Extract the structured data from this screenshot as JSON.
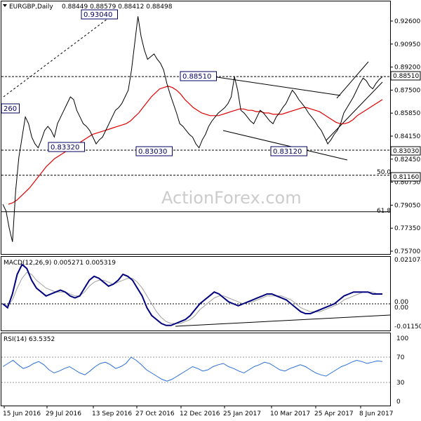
{
  "header": {
    "title": "EURGBP,Daily",
    "ohlc": "0.88449 0.88579 0.88412 0.88498"
  },
  "macd_header": "MACD(12,26,9) 0.005271 0.005319",
  "rsi_header": "RSI(14) 63.5352",
  "watermark": "ActionForex.com",
  "colors": {
    "price": "#000000",
    "ma": "#e00000",
    "macd": "#000080",
    "signal": "#a0a0a0",
    "rsi": "#2a6fd6",
    "label_border": "#000060"
  },
  "chart_data": [
    {
      "type": "line",
      "panel": "price",
      "ylim": [
        0.755,
        0.938
      ],
      "yticks": [
        "0.92600",
        "0.90950",
        "0.89200",
        "0.87500",
        "0.85850",
        "0.84150",
        "0.82450",
        "0.80750",
        "0.79050",
        "0.77350",
        "0.75700"
      ],
      "xticks": [
        "15 Jun 2016",
        "29 Jul 2016",
        "13 Sep 2016",
        "27 Oct 2016",
        "12 Dec 2016",
        "25 Jan 2017",
        "10 Mar 2017",
        "25 Apr 2017",
        "8 Jun 2017"
      ],
      "current_price": "0.88510",
      "horizontal_levels": [
        {
          "value": 0.8851,
          "style": "dashed"
        },
        {
          "value": 0.8303,
          "style": "dashed"
        },
        {
          "value": 0.8116,
          "style": "dashed"
        },
        {
          "value": 0.7844,
          "style": "solid"
        }
      ],
      "price_tags": [
        "0.88510",
        "0.83030",
        "0.81160"
      ],
      "fib_labels": [
        "50.0",
        "61.8"
      ],
      "annotations": [
        "0.93040",
        "0.88510",
        "0.83320",
        "0.83030",
        "0.83120",
        "260"
      ],
      "series": [
        {
          "values": [
            0.79,
            0.785,
            0.772,
            0.762,
            0.8,
            0.825,
            0.84,
            0.855,
            0.85,
            0.84,
            0.835,
            0.832,
            0.838,
            0.845,
            0.848,
            0.845,
            0.84,
            0.85,
            0.855,
            0.86,
            0.865,
            0.87,
            0.868,
            0.86,
            0.855,
            0.85,
            0.848,
            0.845,
            0.84,
            0.835,
            0.838,
            0.84,
            0.845,
            0.85,
            0.855,
            0.86,
            0.862,
            0.865,
            0.87,
            0.875,
            0.89,
            0.91,
            0.93,
            0.915,
            0.905,
            0.898,
            0.9,
            0.902,
            0.898,
            0.895,
            0.89,
            0.88,
            0.872,
            0.865,
            0.858,
            0.85,
            0.848,
            0.845,
            0.842,
            0.84,
            0.835,
            0.832,
            0.838,
            0.842,
            0.848,
            0.852,
            0.855,
            0.858,
            0.86,
            0.862,
            0.865,
            0.87,
            0.885,
            0.875,
            0.86,
            0.858,
            0.855,
            0.852,
            0.85,
            0.855,
            0.86,
            0.858,
            0.855,
            0.852,
            0.85,
            0.855,
            0.858,
            0.862,
            0.865,
            0.87,
            0.875,
            0.872,
            0.868,
            0.865,
            0.862,
            0.858,
            0.855,
            0.852,
            0.848,
            0.845,
            0.84,
            0.835,
            0.838,
            0.842,
            0.845,
            0.85,
            0.858,
            0.862,
            0.866,
            0.87,
            0.875,
            0.88,
            0.884,
            0.882,
            0.878,
            0.876,
            0.88,
            0.883,
            0.885
          ]
        },
        {
          "values": [
            0.79,
            0.791,
            0.793,
            0.796,
            0.799,
            0.802,
            0.806,
            0.81,
            0.814,
            0.818,
            0.821,
            0.824,
            0.826,
            0.828,
            0.83,
            0.832,
            0.834,
            0.836,
            0.838,
            0.84,
            0.842,
            0.843,
            0.844,
            0.845,
            0.846,
            0.847,
            0.848,
            0.849,
            0.85,
            0.852,
            0.855,
            0.858,
            0.862,
            0.866,
            0.87,
            0.873,
            0.876,
            0.877,
            0.878,
            0.877,
            0.875,
            0.872,
            0.868,
            0.865,
            0.862,
            0.86,
            0.858,
            0.857,
            0.856,
            0.856,
            0.856,
            0.857,
            0.858,
            0.859,
            0.86,
            0.861,
            0.861,
            0.86,
            0.86,
            0.859,
            0.859,
            0.858,
            0.858,
            0.857,
            0.857,
            0.857,
            0.858,
            0.859,
            0.86,
            0.861,
            0.862,
            0.862,
            0.861,
            0.86,
            0.859,
            0.857,
            0.855,
            0.853,
            0.851,
            0.85,
            0.85,
            0.851,
            0.853,
            0.856,
            0.858,
            0.86,
            0.862,
            0.864,
            0.866,
            0.868
          ]
        }
      ]
    },
    {
      "type": "line",
      "panel": "macd",
      "ylim": [
        -0.0125,
        0.0225
      ],
      "yticks": [
        "0.021074",
        "0.00",
        "0.00",
        "-0.011507"
      ],
      "series": [
        {
          "name": "MACD",
          "values": [
            0.0,
            -0.002,
            0.005,
            0.015,
            0.02,
            0.018,
            0.012,
            0.008,
            0.006,
            0.004,
            0.005,
            0.006,
            0.007,
            0.006,
            0.004,
            0.003,
            0.004,
            0.008,
            0.012,
            0.014,
            0.013,
            0.011,
            0.009,
            0.01,
            0.012,
            0.015,
            0.014,
            0.012,
            0.008,
            0.004,
            -0.002,
            -0.006,
            -0.008,
            -0.01,
            -0.011,
            -0.011,
            -0.01,
            -0.009,
            -0.008,
            -0.006,
            -0.003,
            0.0,
            0.002,
            0.004,
            0.006,
            0.005,
            0.003,
            0.001,
            0.0,
            -0.001,
            0.0,
            0.001,
            0.002,
            0.003,
            0.004,
            0.005,
            0.005,
            0.004,
            0.003,
            0.002,
            0.0,
            -0.002,
            -0.004,
            -0.005,
            -0.005,
            -0.004,
            -0.003,
            -0.002,
            -0.001,
            0.0,
            0.002,
            0.004,
            0.005,
            0.006,
            0.006,
            0.006,
            0.006,
            0.005,
            0.005,
            0.005
          ]
        },
        {
          "name": "Signal",
          "values": [
            0.0,
            -0.001,
            0.002,
            0.008,
            0.013,
            0.016,
            0.015,
            0.012,
            0.01,
            0.008,
            0.007,
            0.006,
            0.006,
            0.006,
            0.005,
            0.004,
            0.004,
            0.006,
            0.009,
            0.011,
            0.012,
            0.012,
            0.011,
            0.01,
            0.011,
            0.012,
            0.013,
            0.013,
            0.011,
            0.008,
            0.004,
            0.0,
            -0.004,
            -0.007,
            -0.009,
            -0.01,
            -0.01,
            -0.01,
            -0.009,
            -0.008,
            -0.006,
            -0.003,
            -0.001,
            0.001,
            0.003,
            0.004,
            0.004,
            0.003,
            0.002,
            0.001,
            0.0,
            0.001,
            0.001,
            0.002,
            0.003,
            0.004,
            0.004,
            0.004,
            0.004,
            0.003,
            0.002,
            0.0,
            -0.002,
            -0.003,
            -0.004,
            -0.004,
            -0.004,
            -0.003,
            -0.002,
            -0.001,
            0.0,
            0.002,
            0.003,
            0.004,
            0.005,
            0.006,
            0.006,
            0.006,
            0.005,
            0.005
          ]
        }
      ]
    },
    {
      "type": "line",
      "panel": "rsi",
      "ylim": [
        0,
        100
      ],
      "yticks": [
        "100",
        "70",
        "30",
        "0"
      ],
      "series": [
        {
          "name": "RSI(14)",
          "values": [
            55,
            60,
            65,
            58,
            52,
            55,
            60,
            63,
            58,
            50,
            45,
            48,
            52,
            55,
            50,
            45,
            42,
            48,
            55,
            60,
            62,
            58,
            52,
            55,
            60,
            70,
            65,
            58,
            50,
            45,
            40,
            35,
            32,
            35,
            40,
            45,
            50,
            55,
            52,
            48,
            50,
            55,
            58,
            60,
            55,
            52,
            48,
            45,
            50,
            55,
            58,
            62,
            60,
            55,
            50,
            48,
            52,
            55,
            58,
            55,
            50,
            45,
            42,
            40,
            45,
            50,
            55,
            58,
            62,
            65,
            63,
            60,
            62,
            64,
            63
          ]
        }
      ]
    }
  ]
}
